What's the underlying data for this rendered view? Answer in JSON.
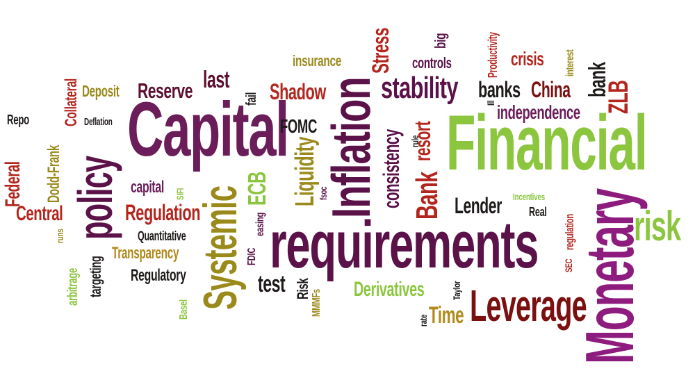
{
  "cloud": {
    "words": {
      "financial": "Financial",
      "requirements": "requirements",
      "capital_big": "Capital",
      "inflation": "Inflation",
      "monetary": "Monetary",
      "systemic": "Systemic",
      "policy": "policy",
      "leverage": "Leverage",
      "stability": "stability",
      "risk": "risk",
      "bank": "Bank",
      "resort": "resort",
      "liquidity": "Liquidity",
      "stress": "Stress",
      "regulation": "Regulation",
      "central": "Central",
      "reserve": "Reserve",
      "shadow": "Shadow",
      "independence": "independence",
      "banks": "banks",
      "china": "China",
      "derivatives": "Derivatives",
      "time": "Time",
      "lender": "Lender",
      "insurance": "insurance",
      "fomc": "FOMC",
      "controls": "controls",
      "crisis": "crisis",
      "ecb": "ECB",
      "consistency": "consistency",
      "transparency": "Transparency",
      "regulatory": "Regulatory",
      "quantitative": "Quantitative",
      "capital_small": "capital",
      "deposit": "Deposit",
      "collateral": "Collateral",
      "dodd_frank": "Dodd-Frank",
      "federal": "Federal",
      "repo": "Repo",
      "deflation": "Deflation",
      "last": "last",
      "fail": "fail",
      "test": "test",
      "risk_small": "Risk",
      "zlb": "ZLB",
      "bank_small": "bank",
      "interest": "interest",
      "productivity": "Productivity",
      "big": "big",
      "rule": "rule",
      "ill": "Ill",
      "fsoc": "fsoc",
      "fdic": "FDIC",
      "easing": "easing",
      "sifi": "SIFI",
      "basel": "Basel",
      "mmmfs": "MMMFs",
      "taylor": "Taylor",
      "rate": "rate",
      "incentives": "Incentives",
      "real": "Real",
      "sec": "SEC",
      "regulation_small": "regulation",
      "arbitrage": "arbitrage",
      "targeting": "targeting",
      "runs": "runs"
    }
  }
}
